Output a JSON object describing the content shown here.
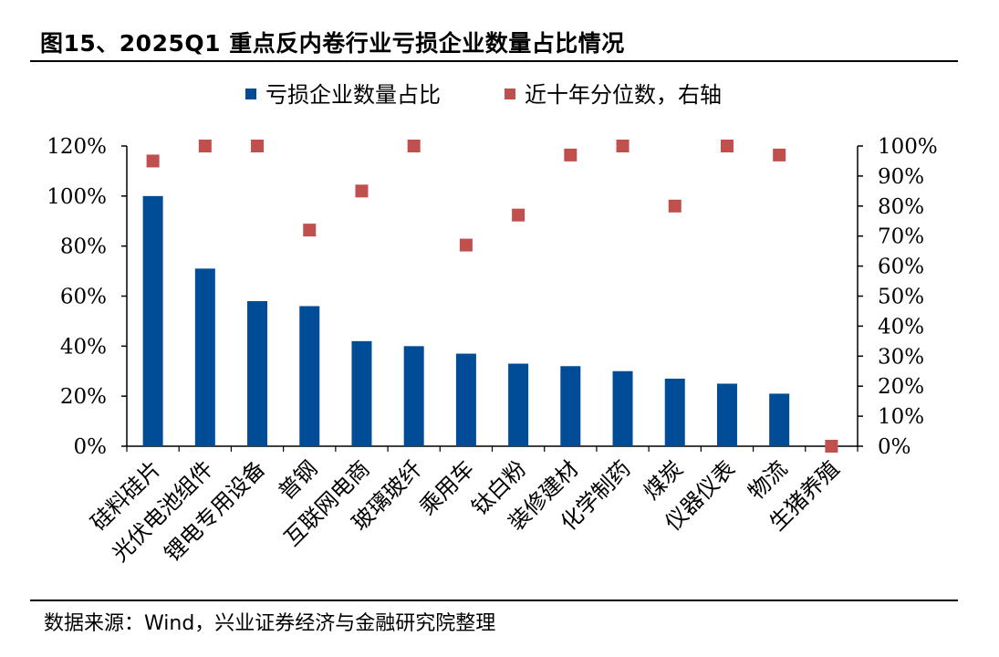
{
  "title": "图15、2025Q1 重点反内卷行业亏损企业数量占比情况",
  "source": "数据来源：Wind，兴业证券经济与金融研究院整理",
  "colors": {
    "bar": "#004C97",
    "marker": "#C0504D",
    "axis": "#000000"
  },
  "chart_data": {
    "type": "bar",
    "categories": [
      "硅料硅片",
      "光伏电池组件",
      "锂电专用设备",
      "普钢",
      "互联网电商",
      "玻璃玻纤",
      "乘用车",
      "钛白粉",
      "装修建材",
      "化学制药",
      "煤炭",
      "仪器仪表",
      "物流",
      "生猪养殖"
    ],
    "series": [
      {
        "name": "亏损企业数量占比",
        "kind": "bar",
        "axis": "left",
        "values": [
          100,
          71,
          58,
          56,
          42,
          40,
          37,
          33,
          32,
          30,
          27,
          25,
          21,
          null
        ]
      },
      {
        "name": "近十年分位数，右轴",
        "kind": "marker",
        "axis": "right",
        "values": [
          95,
          100,
          100,
          72,
          85,
          100,
          67,
          77,
          97,
          100,
          80,
          100,
          97,
          0
        ]
      }
    ],
    "left_axis": {
      "min": 0,
      "max": 120,
      "step": 20,
      "tick_labels": [
        "0%",
        "20%",
        "40%",
        "60%",
        "80%",
        "100%",
        "120%"
      ]
    },
    "right_axis": {
      "min": 0,
      "max": 100,
      "step": 10,
      "tick_labels": [
        "0%",
        "10%",
        "20%",
        "30%",
        "40%",
        "50%",
        "60%",
        "70%",
        "80%",
        "90%",
        "100%"
      ]
    },
    "legend": "top-center",
    "grid": false
  }
}
